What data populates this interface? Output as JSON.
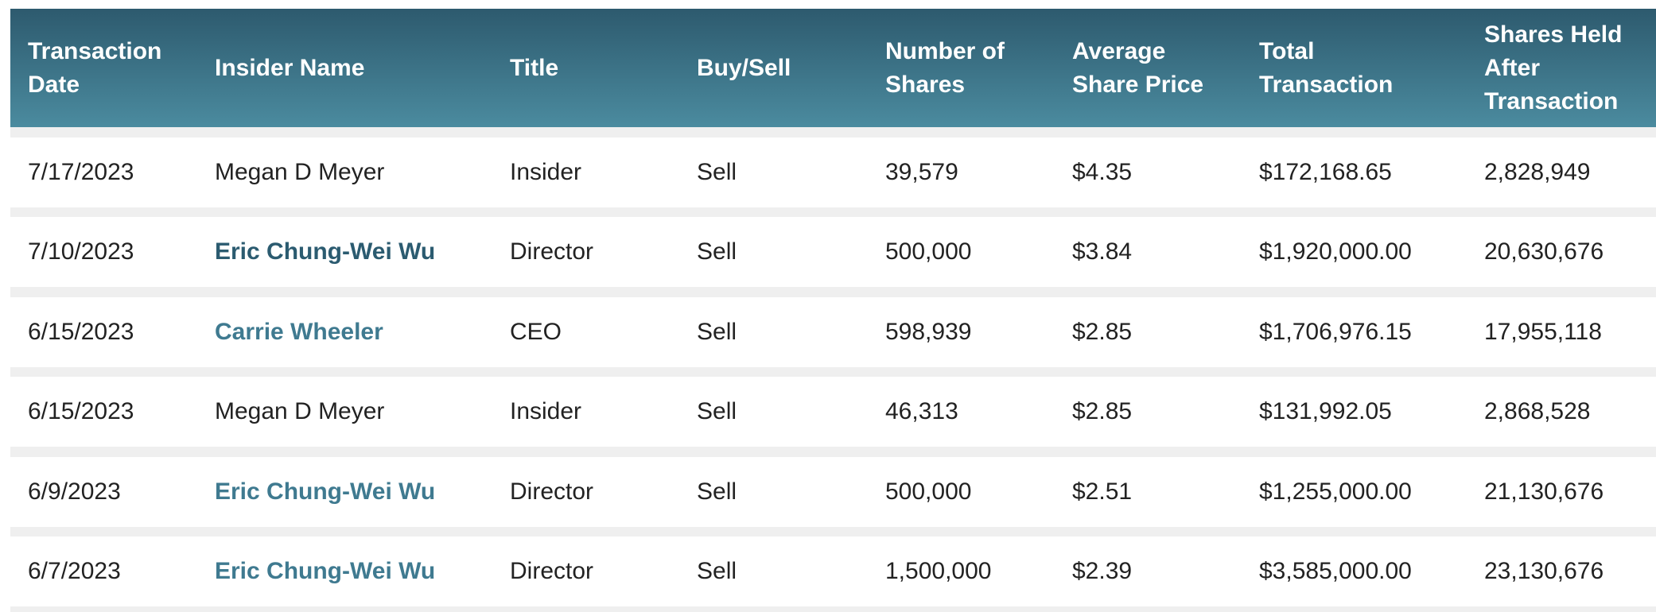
{
  "table": {
    "header": [
      "Transaction Date",
      "Insider Name",
      "Title",
      "Buy/Sell",
      "Number of Shares",
      "Average Share Price",
      "Total Transaction",
      "Shares Held After Transaction"
    ],
    "rows": [
      [
        "7/17/2023",
        "Megan D Meyer",
        "Insider",
        "Sell",
        "39,579",
        "$4.35",
        "$172,168.65",
        "2,828,949"
      ],
      [
        "7/10/2023",
        "Eric Chung-Wei Wu",
        "Director",
        "Sell",
        "500,000",
        "$3.84",
        "$1,920,000.00",
        "20,630,676"
      ],
      [
        "6/15/2023",
        "Carrie Wheeler",
        "CEO",
        "Sell",
        "598,939",
        "$2.85",
        "$1,706,976.15",
        "17,955,118"
      ],
      [
        "6/15/2023",
        "Megan D Meyer",
        "Insider",
        "Sell",
        "46,313",
        "$2.85",
        "$131,992.05",
        "2,868,528"
      ],
      [
        "6/9/2023",
        "Eric Chung-Wei Wu",
        "Director",
        "Sell",
        "500,000",
        "$2.51",
        "$1,255,000.00",
        "21,130,676"
      ],
      [
        "6/7/2023",
        "Eric Chung-Wei Wu",
        "Director",
        "Sell",
        "1,500,000",
        "$2.39",
        "$3,585,000.00",
        "23,130,676"
      ]
    ]
  }
}
